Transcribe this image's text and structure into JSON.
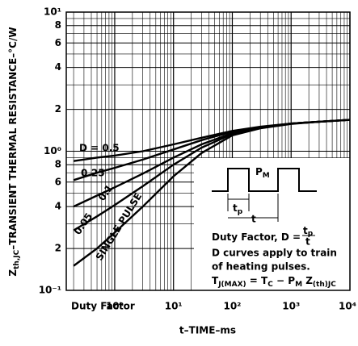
{
  "chart_data": {
    "type": "line",
    "x_label": [
      "t–TIME–ms"
    ],
    "y_label": [
      "Z",
      "th,JC",
      "–TRANSIENT THERMAL RESISTANCE–°C/W"
    ],
    "log_x": true,
    "log_y": true,
    "grid": true,
    "color": "#000000",
    "xlim": [
      0.15,
      10000
    ],
    "ylim": [
      0.1,
      10
    ],
    "xticks": [
      {
        "value": 1,
        "label": "10⁰"
      },
      {
        "value": 10,
        "label": "10¹"
      },
      {
        "value": 100,
        "label": "10²"
      },
      {
        "value": 1000,
        "label": "10³"
      },
      {
        "value": 10000,
        "label": "10⁴"
      }
    ],
    "yticks": [
      {
        "value": 10,
        "label": "10¹"
      },
      8,
      6,
      4,
      2,
      {
        "value": 1,
        "label": "10⁰"
      },
      {
        "value": 0.8,
        "label": "8"
      },
      {
        "value": 0.6,
        "label": "6"
      },
      {
        "value": 0.4,
        "label": "4"
      },
      {
        "value": 0.2,
        "label": "2"
      },
      {
        "value": 0.1,
        "label": "10⁻¹"
      }
    ],
    "x": [
      0.2,
      0.5,
      1,
      3,
      10,
      30,
      100,
      300,
      1000,
      3000,
      10000
    ],
    "series": [
      {
        "name": "D = 0.5",
        "values": [
          0.85,
          0.9,
          0.93,
          1.0,
          1.12,
          1.25,
          1.4,
          1.5,
          1.58,
          1.63,
          1.68
        ]
      },
      {
        "name": "0.25",
        "values": [
          0.62,
          0.7,
          0.76,
          0.87,
          1.03,
          1.2,
          1.38,
          1.49,
          1.58,
          1.63,
          1.68
        ]
      },
      {
        "name": "0.1",
        "values": [
          0.4,
          0.48,
          0.55,
          0.69,
          0.9,
          1.12,
          1.35,
          1.48,
          1.58,
          1.63,
          1.68
        ]
      },
      {
        "name": "0.05",
        "values": [
          0.27,
          0.34,
          0.41,
          0.56,
          0.8,
          1.06,
          1.33,
          1.47,
          1.58,
          1.63,
          1.68
        ]
      },
      {
        "name": "SINGLE PULSE",
        "values": [
          0.15,
          0.2,
          0.26,
          0.4,
          0.66,
          0.97,
          1.3,
          1.46,
          1.57,
          1.63,
          1.68
        ]
      }
    ],
    "annotations": {
      "duty_factor": "Duty Factor",
      "pm": [
        "P",
        "M"
      ],
      "tp": [
        "t",
        "p"
      ],
      "t": "t",
      "duty": [
        "Duty Factor, D =",
        "t",
        "p",
        "t"
      ],
      "line1": "D curves apply to train",
      "line2": "of heating pulses.",
      "eq": [
        "T",
        "J(MAX)",
        " = T",
        "C",
        " − P",
        "M",
        " Z",
        "(th)JC"
      ]
    }
  }
}
